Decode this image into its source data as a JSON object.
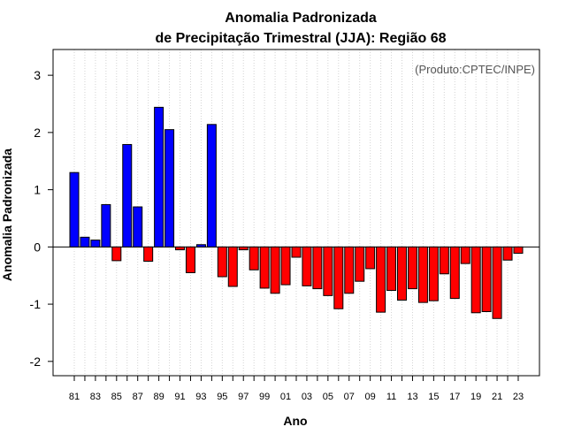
{
  "chart_data": {
    "type": "bar",
    "title_line1": "Anomalia Padronizada",
    "title_line2": "de Precipitação Trimestral (JJA): Região 68",
    "xlabel": "Ano",
    "ylabel": "Anomalia Padronizada",
    "source": "(Produto:CPTEC/INPE)",
    "ylim": [
      -2.25,
      3.45
    ],
    "yticks": [
      -2,
      -1,
      0,
      1,
      2,
      3
    ],
    "positive_color": "#0000ff",
    "negative_color": "#ff0000",
    "categories": [
      "81",
      "82",
      "83",
      "84",
      "85",
      "86",
      "87",
      "88",
      "89",
      "90",
      "91",
      "92",
      "93",
      "94",
      "95",
      "96",
      "97",
      "98",
      "99",
      "00",
      "01",
      "02",
      "03",
      "04",
      "05",
      "06",
      "07",
      "08",
      "09",
      "10",
      "11",
      "12",
      "13",
      "14",
      "15",
      "16",
      "17",
      "18",
      "19",
      "20",
      "21",
      "22",
      "23"
    ],
    "xtick_labels": [
      "81",
      "83",
      "85",
      "87",
      "89",
      "91",
      "93",
      "95",
      "97",
      "99",
      "01",
      "03",
      "05",
      "07",
      "09",
      "11",
      "13",
      "15",
      "17",
      "19",
      "21",
      "23"
    ],
    "values": [
      1.3,
      0.17,
      0.12,
      0.74,
      -0.24,
      1.79,
      0.7,
      -0.25,
      2.44,
      2.05,
      -0.05,
      -0.45,
      0.04,
      2.14,
      -0.52,
      -0.69,
      -0.05,
      -0.4,
      -0.72,
      -0.81,
      -0.66,
      -0.18,
      -0.68,
      -0.73,
      -0.85,
      -1.08,
      -0.81,
      -0.6,
      -0.38,
      -1.14,
      -0.76,
      -0.93,
      -0.73,
      -0.97,
      -0.94,
      -0.47,
      -0.9,
      -0.29,
      -1.15,
      -1.13,
      -1.25,
      -0.23,
      -0.11
    ]
  }
}
